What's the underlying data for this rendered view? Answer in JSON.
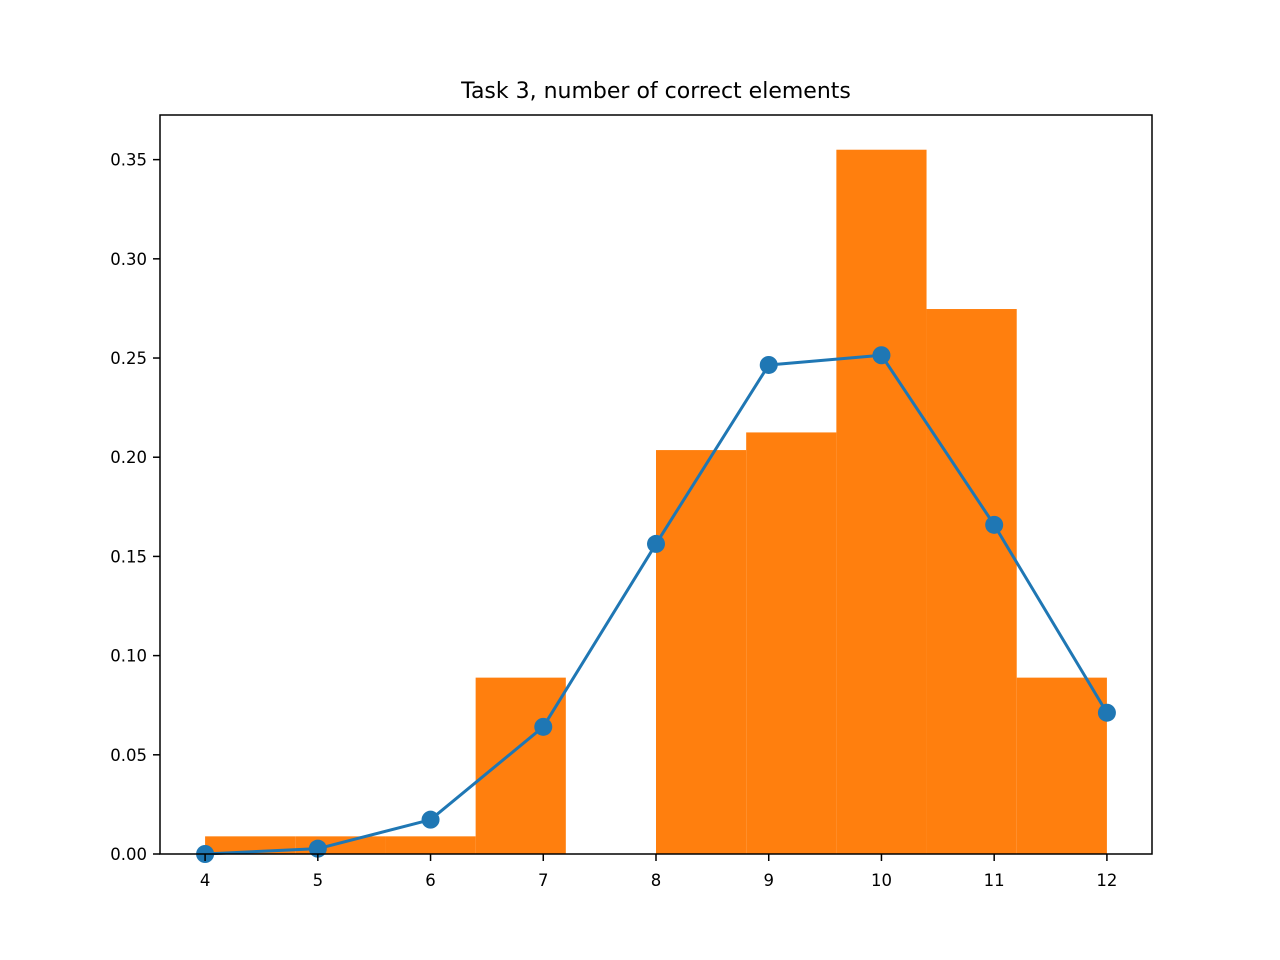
{
  "chart_data": {
    "type": "bar",
    "title": "Task 3, number of correct elements",
    "xlabel": "",
    "ylabel": "",
    "xlim": [
      3.6,
      12.4
    ],
    "ylim": [
      0,
      0.3725
    ],
    "x_ticks": [
      4,
      5,
      6,
      7,
      8,
      9,
      10,
      11,
      12
    ],
    "x_tick_labels": [
      "4",
      "5",
      "6",
      "7",
      "8",
      "9",
      "10",
      "11",
      "12"
    ],
    "y_ticks": [
      0,
      0.05,
      0.1,
      0.15,
      0.2,
      0.25,
      0.3,
      0.35
    ],
    "y_tick_labels": [
      "0.00",
      "0.05",
      "0.10",
      "0.15",
      "0.20",
      "0.25",
      "0.30",
      "0.35"
    ],
    "grid": false,
    "histogram": {
      "name": "",
      "color": "#ff7f0e",
      "bin_edges": [
        4.0,
        4.8,
        5.6,
        6.4,
        7.2,
        8.0,
        8.8,
        9.6,
        10.4,
        11.2,
        12.0
      ],
      "values": [
        0.0089,
        0.0089,
        0.0089,
        0.0889,
        0.0,
        0.2036,
        0.2125,
        0.355,
        0.2747,
        0.0889
      ]
    },
    "line": {
      "name": "",
      "color": "#1f77b4",
      "marker": "circle",
      "x": [
        4,
        5,
        6,
        7,
        8,
        9,
        10,
        11,
        12
      ],
      "y": [
        0.0,
        0.0027,
        0.0173,
        0.0641,
        0.1563,
        0.2465,
        0.2514,
        0.1659,
        0.0712
      ]
    }
  }
}
